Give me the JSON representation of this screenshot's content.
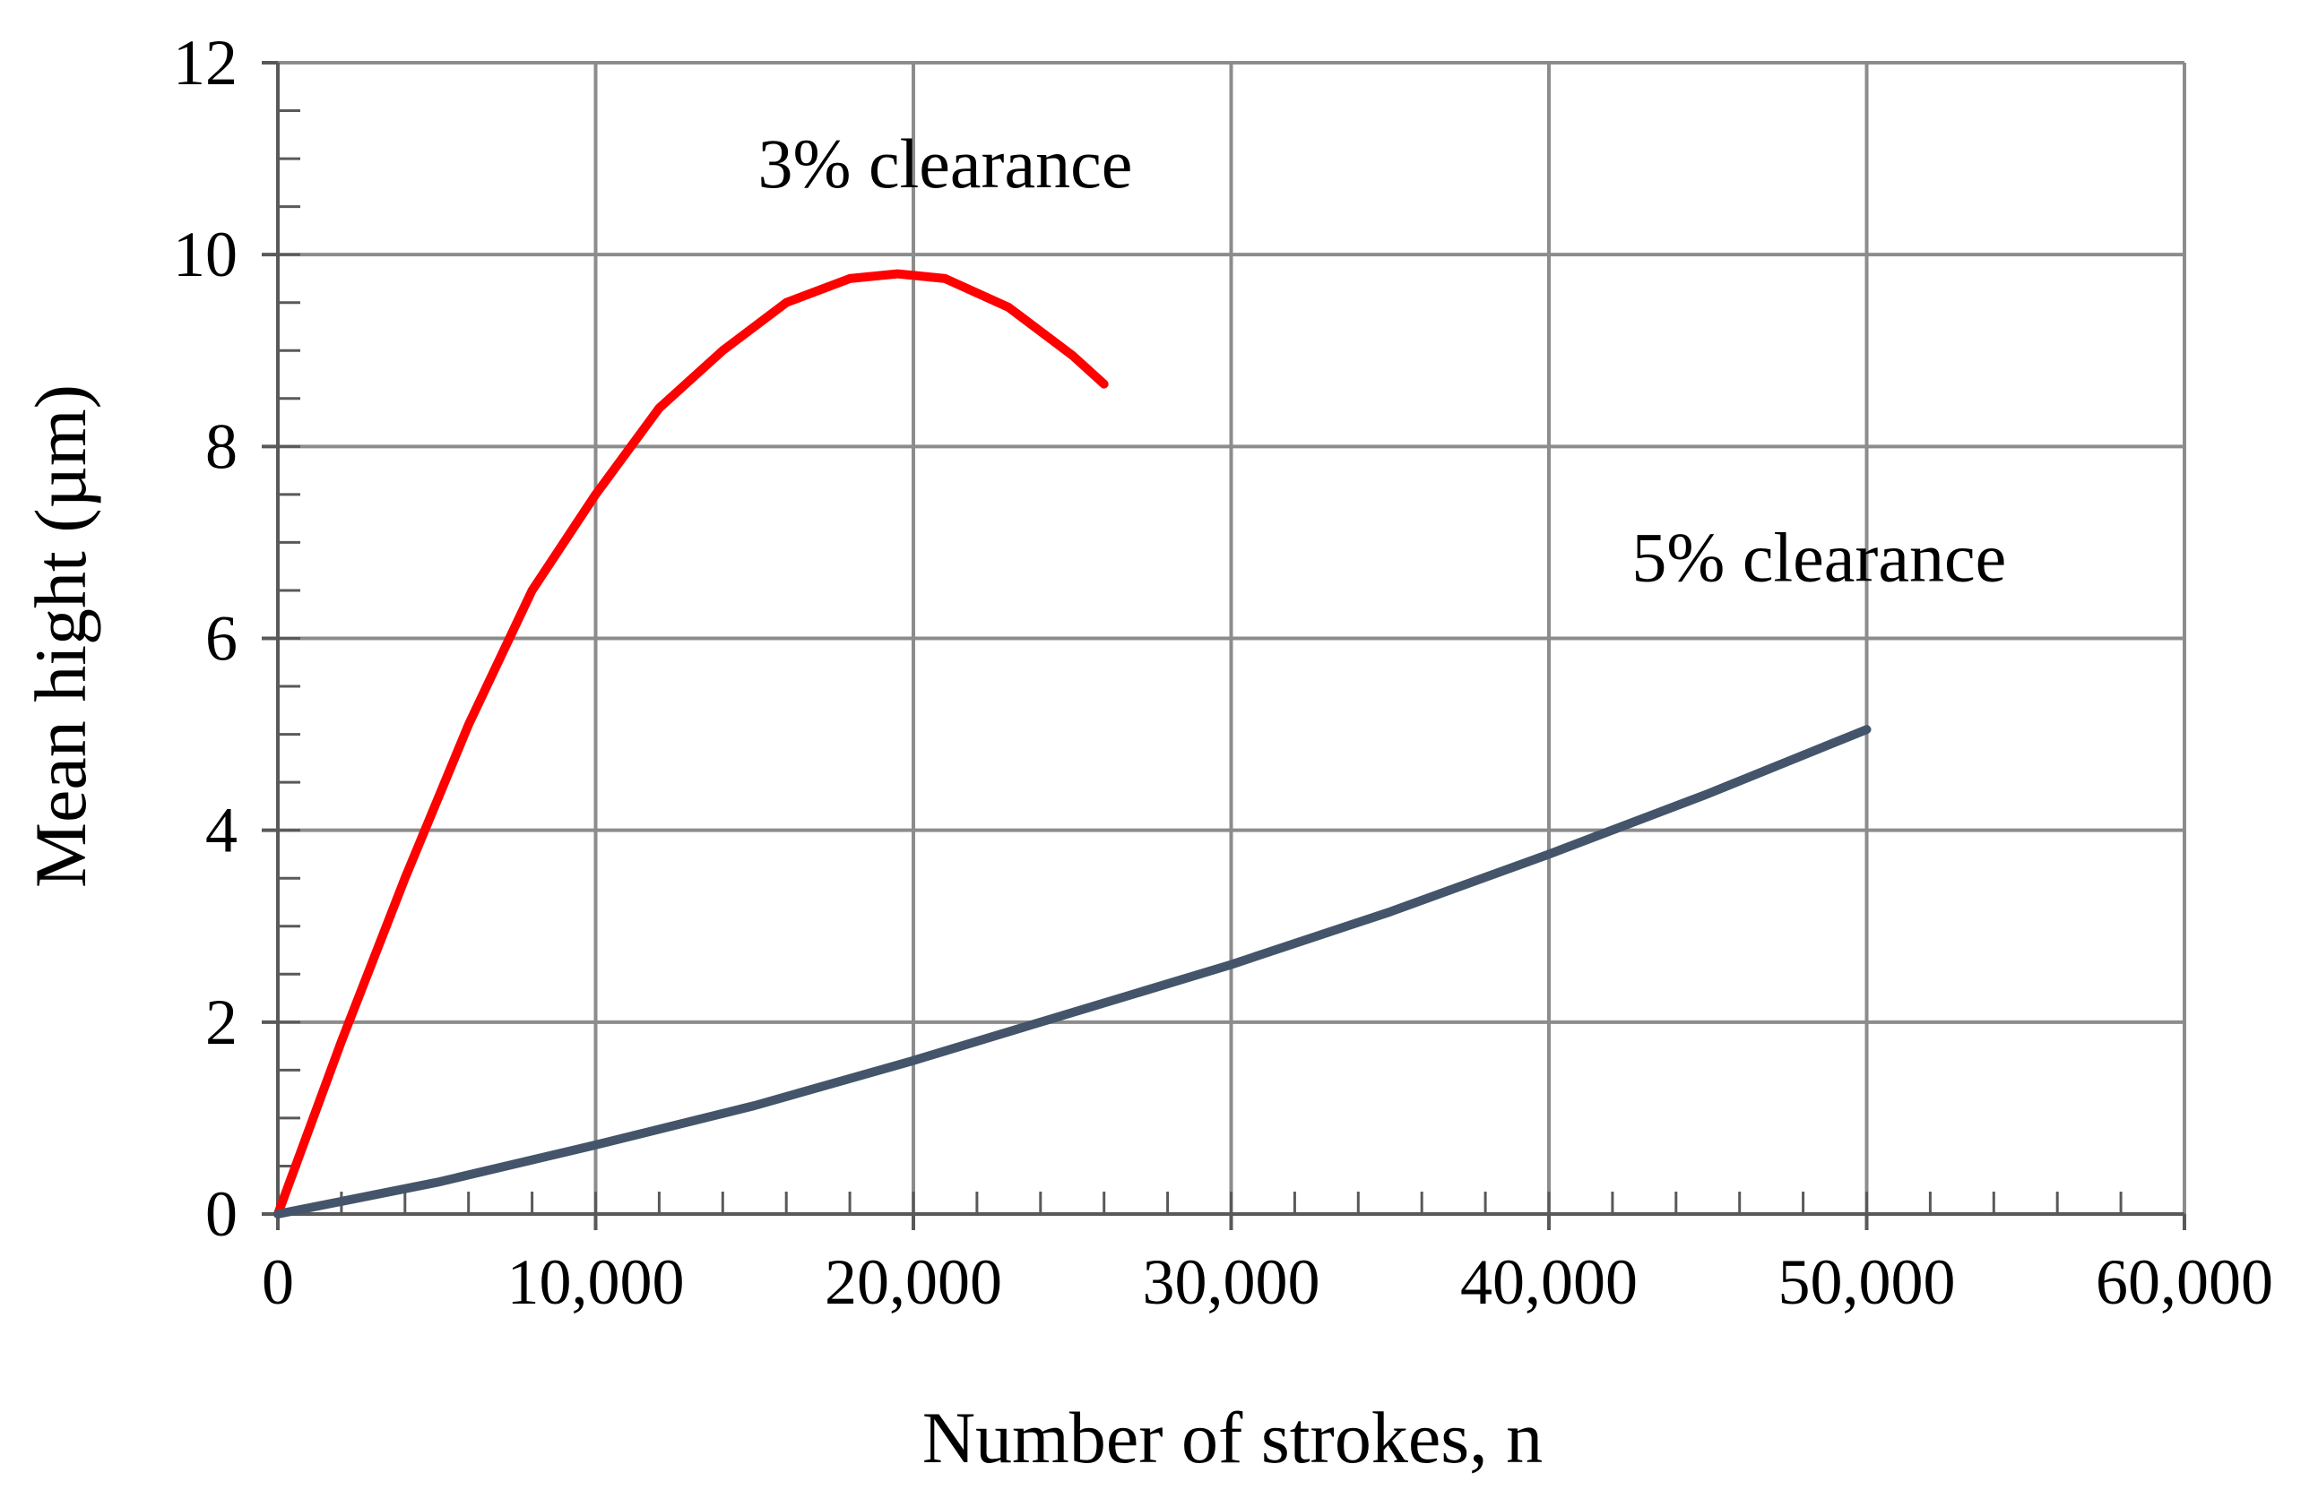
{
  "chart_data": {
    "type": "line",
    "title": "",
    "xlabel": "Number of strokes, n",
    "ylabel": "Mean hight (µm)",
    "xlim": [
      0,
      60000
    ],
    "ylim": [
      0,
      12
    ],
    "x_ticks": [
      0,
      10000,
      20000,
      30000,
      40000,
      50000,
      60000
    ],
    "x_tick_labels": [
      "0",
      "10,000",
      "20,000",
      "30,000",
      "40,000",
      "50,000",
      "60,000"
    ],
    "y_ticks": [
      0,
      2,
      4,
      6,
      8,
      10,
      12
    ],
    "y_tick_labels": [
      "0",
      "2",
      "4",
      "6",
      "8",
      "10",
      "12"
    ],
    "grid": true,
    "legend": "none",
    "series": [
      {
        "name": "3% clearance",
        "color": "#ff0000",
        "x": [
          0,
          2000,
          4000,
          6000,
          8000,
          10000,
          12000,
          14000,
          16000,
          18000,
          19500,
          21000,
          23000,
          25000,
          26000
        ],
        "y": [
          0,
          1.8,
          3.5,
          5.1,
          6.5,
          7.5,
          8.4,
          9.0,
          9.5,
          9.75,
          9.8,
          9.75,
          9.45,
          8.95,
          8.65
        ]
      },
      {
        "name": "5% clearance",
        "color": "#44546a",
        "x": [
          0,
          5000,
          10000,
          15000,
          20000,
          25000,
          30000,
          35000,
          40000,
          45000,
          50000
        ],
        "y": [
          0,
          0.33,
          0.72,
          1.13,
          1.6,
          2.1,
          2.6,
          3.15,
          3.75,
          4.38,
          5.05
        ]
      }
    ],
    "annotations": [
      {
        "text": "3% clearance",
        "x": 21000,
        "y": 10.7
      },
      {
        "text": "5% clearance",
        "x": 48500,
        "y": 6.6
      }
    ]
  }
}
